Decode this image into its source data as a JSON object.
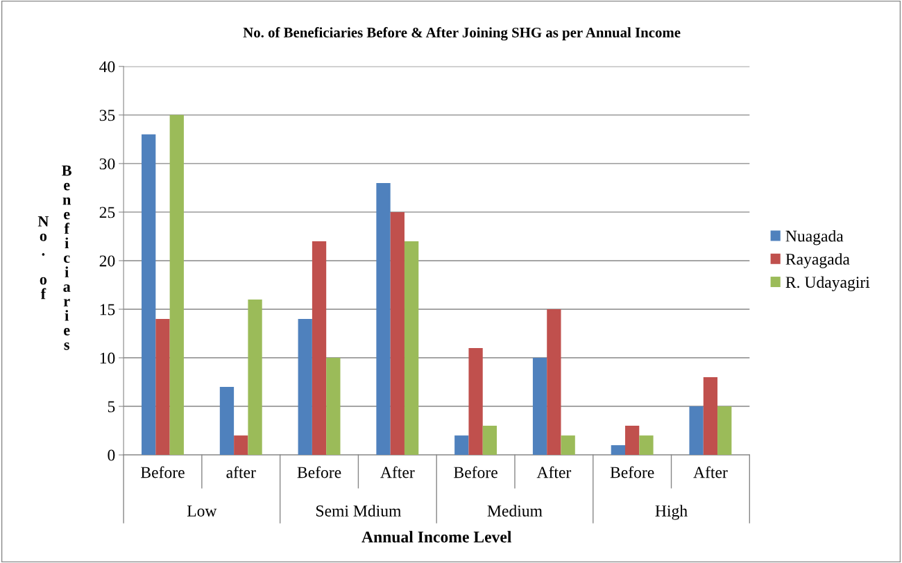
{
  "chart_data": {
    "type": "bar",
    "title": "No. of Beneficiaries Before & After Joining SHG as per Annual Income",
    "xlabel": "Annual Income Level",
    "ylabel": "No. of Beneficiaries",
    "categories": [
      "Before",
      "after",
      "Before",
      "After",
      "Before",
      "After",
      "Before",
      "After"
    ],
    "annotations": [
      "Low",
      "Semi Mdium",
      "Medium",
      "High"
    ],
    "series": [
      {
        "name": "Nuagada",
        "color": "#4f81bd",
        "values": [
          33,
          7,
          14,
          28,
          2,
          10,
          1,
          5
        ]
      },
      {
        "name": "Rayagada",
        "color": "#c0504d",
        "values": [
          14,
          2,
          22,
          25,
          11,
          15,
          3,
          8
        ]
      },
      {
        "name": "R. Udayagiri",
        "color": "#9bbb59",
        "values": [
          35,
          16,
          10,
          22,
          3,
          2,
          2,
          5
        ]
      }
    ],
    "ylim": [
      0,
      40
    ],
    "yticks": [
      0,
      5,
      10,
      15,
      20,
      25,
      30,
      35,
      40
    ],
    "grid": "y",
    "legend": "right"
  }
}
